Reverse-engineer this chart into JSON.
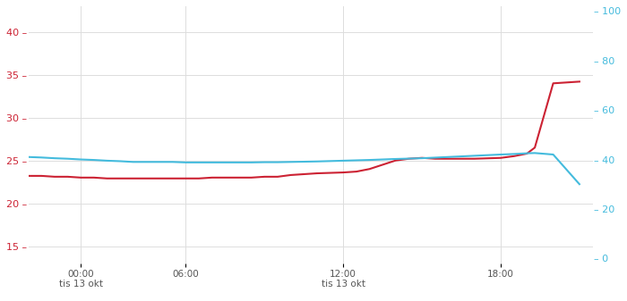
{
  "bg_color": "#ffffff",
  "grid_color": "#dddddd",
  "temp_color": "#cc2233",
  "humidity_color": "#44bbdd",
  "left_axis_color": "#cc2233",
  "right_axis_color": "#44bbdd",
  "xlim": [
    0,
    21.5
  ],
  "ylim_left": [
    13,
    43
  ],
  "ylim_right": [
    -2,
    102
  ],
  "yticks_left": [
    15,
    20,
    25,
    30,
    35,
    40
  ],
  "yticks_right": [
    0,
    20,
    40,
    60,
    80,
    100
  ],
  "x_hours": [
    0,
    0.5,
    1,
    1.5,
    2,
    2.5,
    3,
    3.5,
    4,
    4.5,
    5,
    5.5,
    6,
    6.5,
    7,
    7.5,
    8,
    8.5,
    9,
    9.5,
    10,
    10.5,
    11,
    11.5,
    12,
    12.5,
    13,
    13.5,
    14,
    14.5,
    15,
    15.5,
    16,
    16.5,
    17,
    17.5,
    18,
    18.5,
    19,
    19.3,
    20.0,
    21.0
  ],
  "temp_values": [
    23.2,
    23.2,
    23.1,
    23.1,
    23.0,
    23.0,
    22.9,
    22.9,
    22.9,
    22.9,
    22.9,
    22.9,
    22.9,
    22.9,
    23.0,
    23.0,
    23.0,
    23.0,
    23.1,
    23.1,
    23.3,
    23.4,
    23.5,
    23.55,
    23.6,
    23.7,
    24.0,
    24.5,
    25.0,
    25.2,
    25.3,
    25.2,
    25.2,
    25.2,
    25.2,
    25.25,
    25.3,
    25.5,
    25.8,
    26.5,
    34.0,
    34.2
  ],
  "humidity_values": [
    41.0,
    40.8,
    40.5,
    40.3,
    40.0,
    39.8,
    39.5,
    39.3,
    39.0,
    39.0,
    39.0,
    39.0,
    38.8,
    38.8,
    38.8,
    38.8,
    38.8,
    38.8,
    38.9,
    38.9,
    39.0,
    39.1,
    39.2,
    39.35,
    39.5,
    39.65,
    39.8,
    40.0,
    40.2,
    40.35,
    40.5,
    40.75,
    41.0,
    41.25,
    41.5,
    41.75,
    42.0,
    42.2,
    42.5,
    42.6,
    42.0,
    30.0
  ],
  "xtick_positions": [
    2,
    6,
    12,
    18
  ],
  "xtick_labels": [
    "00:00",
    "06:00",
    "12:00",
    "18:00"
  ],
  "xtick_sublabels": [
    "tis 13 okt",
    "",
    "tis 13 okt",
    ""
  ],
  "title_fontsize": 13,
  "title_suffix_fontsize": 10,
  "label_fontsize": 9,
  "tick_fontsize": 8
}
